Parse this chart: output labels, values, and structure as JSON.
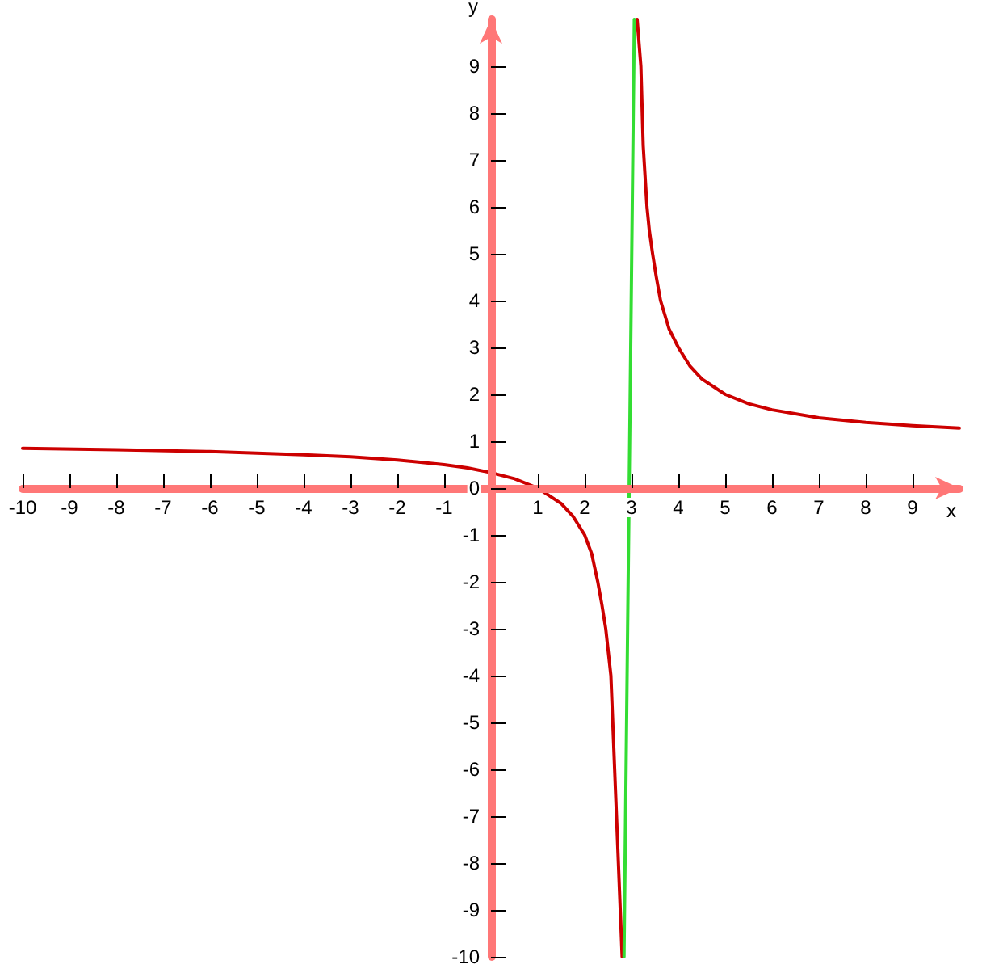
{
  "chart_data": {
    "type": "line",
    "xlabel": "x",
    "ylabel": "y",
    "xlim": [
      -10,
      10
    ],
    "ylim": [
      -10,
      10
    ],
    "xticks": [
      -10,
      -9,
      -8,
      -7,
      -6,
      -5,
      -4,
      -3,
      -2,
      -1,
      {
        "value": 0,
        "label": null
      },
      1,
      2,
      3,
      4,
      5,
      6,
      7,
      8,
      9
    ],
    "yticks": [
      -10,
      -9,
      -8,
      -7,
      -6,
      -5,
      -4,
      -3,
      -2,
      -1,
      0,
      1,
      2,
      3,
      4,
      5,
      6,
      7,
      8,
      9
    ],
    "marker": "none",
    "line_style": "solid",
    "series": [
      {
        "color": "#cc0000",
        "x": [
          -10,
          -8,
          -6,
          -4,
          -3,
          -2,
          -1,
          -0.5,
          0,
          0.5,
          1,
          1.5,
          1.75,
          2,
          2.15,
          2.28,
          2.37,
          2.45,
          2.56,
          2.64,
          2.68,
          2.72,
          2.76,
          2.8,
          3,
          3.12,
          3.2,
          3.25,
          3.33,
          3.38,
          3.45,
          3.53,
          3.62,
          3.8,
          4,
          4.25,
          4.5,
          5,
          5.5,
          6,
          7,
          8,
          9,
          10
        ],
        "values": [
          0.85,
          0.82,
          0.78,
          0.71,
          0.67,
          0.6,
          0.5,
          0.43,
          0.33,
          0.2,
          0,
          -0.33,
          -0.6,
          -1,
          -1.4,
          -2,
          -2.5,
          -3,
          -4,
          -6,
          -7,
          -8,
          -9,
          -10,
          null,
          10,
          9,
          7.3,
          6,
          5.5,
          5,
          4.5,
          4,
          3.4,
          3,
          2.6,
          2.33,
          2,
          1.8,
          1.67,
          1.5,
          1.4,
          1.33,
          1.28
        ]
      },
      {
        "color": "#33dd33",
        "x": [
          2.84,
          3.06
        ],
        "values": [
          -10,
          10
        ]
      }
    ]
  }
}
